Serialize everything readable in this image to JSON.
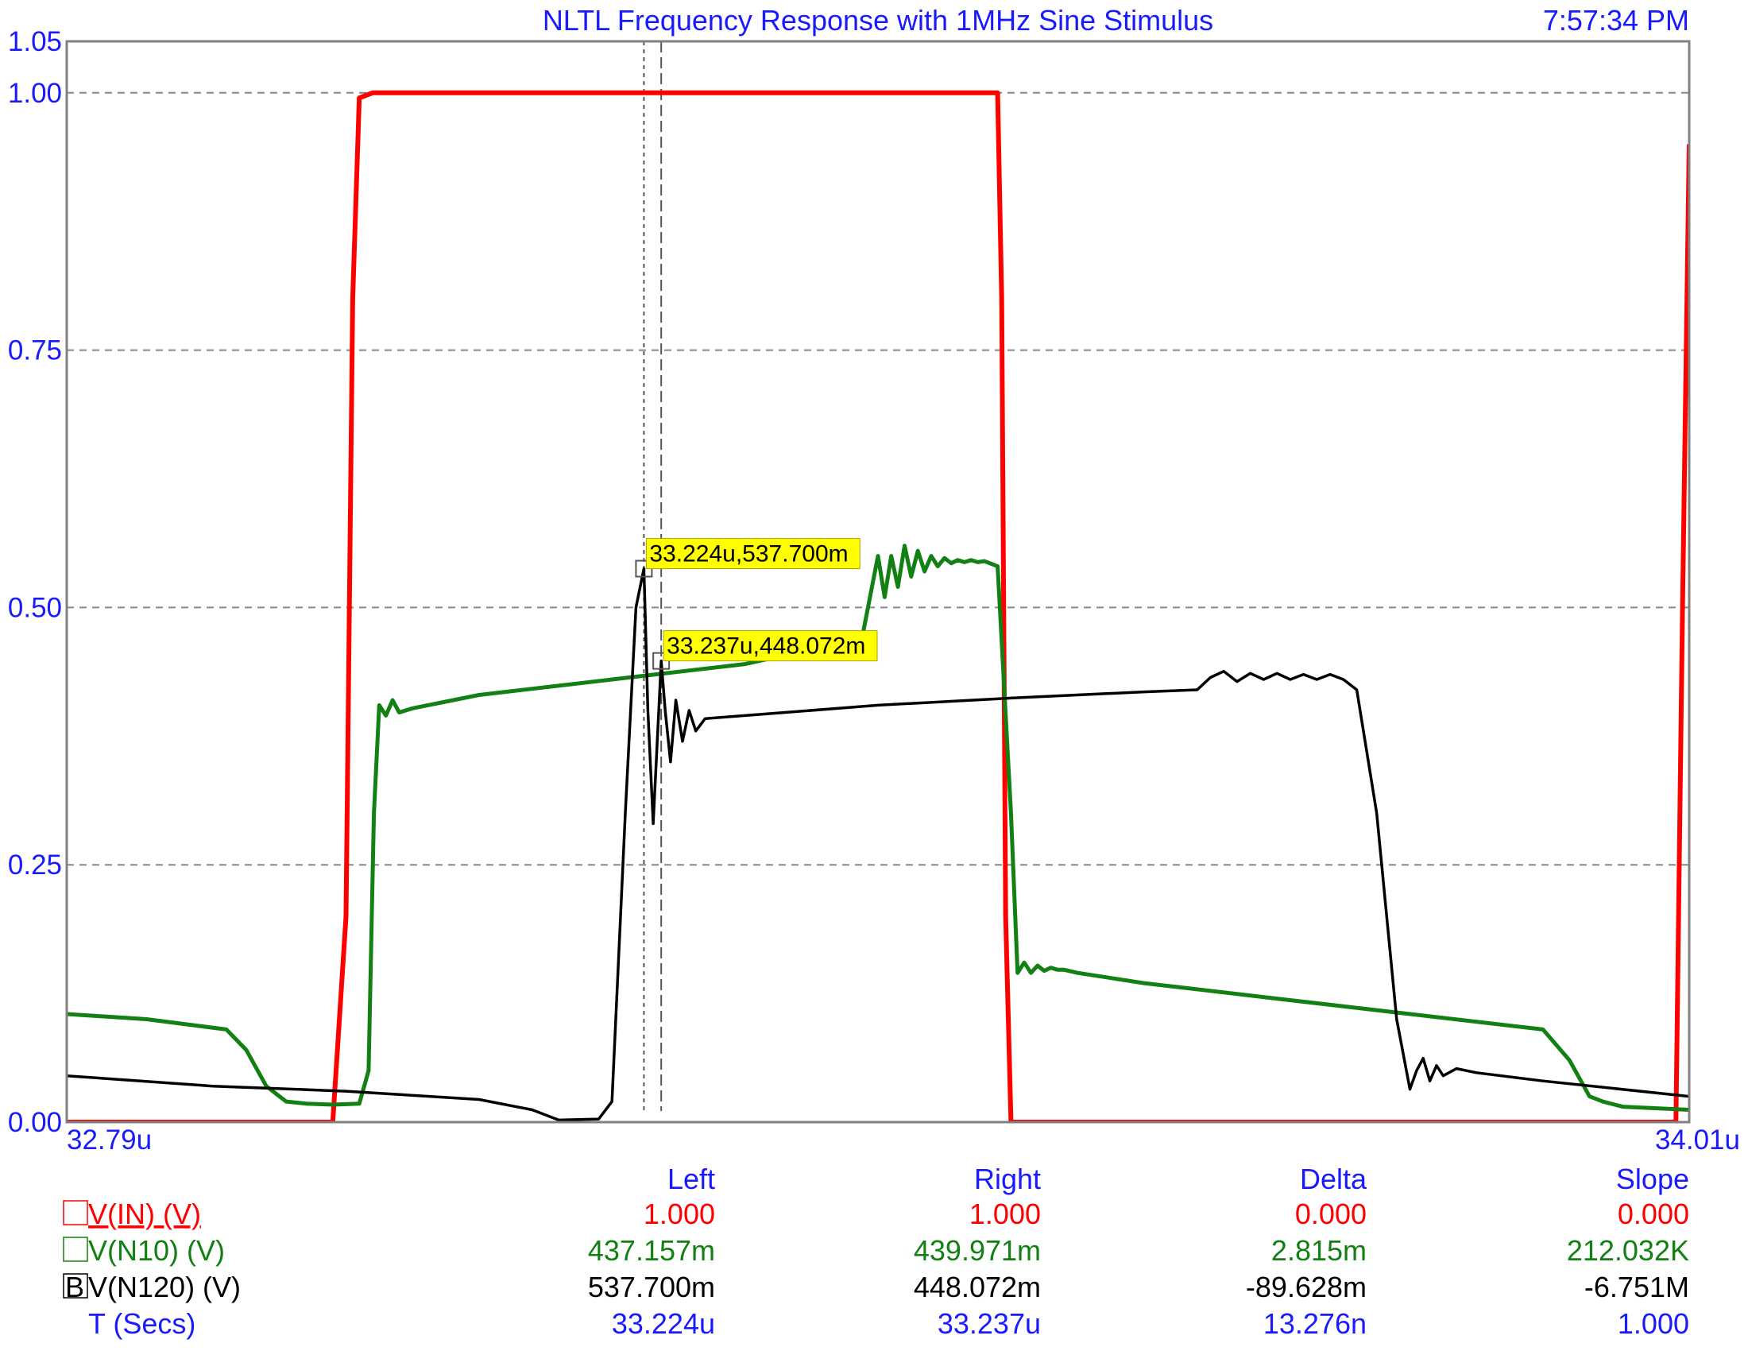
{
  "header": {
    "title": "NLTL Frequency Response with 1MHz Sine Stimulus",
    "time": "7:57:34 PM"
  },
  "colors": {
    "blue": "#1a1aff",
    "vin": "#ff0000",
    "n10": "#128012",
    "n120": "#000000",
    "grid": "#888888",
    "marker_bg": "#ffff00"
  },
  "chart_data": {
    "type": "line",
    "title": "NLTL Frequency Response with 1MHz Sine Stimulus",
    "xlabel": "T (Secs)",
    "ylabel": "",
    "xlim": [
      32.79,
      34.01
    ],
    "ylim": [
      0.0,
      1.05
    ],
    "x_tick_labels": [
      "32.79u",
      "34.01u"
    ],
    "y_ticks": [
      {
        "value": 1.05,
        "label": "1.05"
      },
      {
        "value": 1.0,
        "label": "1.00"
      },
      {
        "value": 0.75,
        "label": "0.75"
      },
      {
        "value": 0.5,
        "label": "0.50"
      },
      {
        "value": 0.25,
        "label": "0.25"
      },
      {
        "value": 0.0,
        "label": "0.00"
      }
    ],
    "grid": true,
    "series": [
      {
        "name": "V(IN) (V)",
        "color": "#ff0000",
        "x": [
          32.79,
          32.9,
          32.99,
          33.0,
          33.005,
          33.01,
          33.02,
          33.2,
          33.4,
          33.49,
          33.493,
          33.496,
          33.5,
          33.51,
          33.7,
          34.0,
          34.005,
          34.01
        ],
        "y": [
          0.0,
          0.0,
          0.0,
          0.2,
          0.8,
          0.995,
          1.0,
          1.0,
          1.0,
          1.0,
          0.8,
          0.2,
          0.0,
          0.0,
          0.0,
          0.0,
          0.5,
          0.95
        ]
      },
      {
        "name": "V(N10) (V)",
        "color": "#128012",
        "x": [
          32.79,
          32.85,
          32.91,
          32.925,
          32.94,
          32.955,
          32.97,
          32.99,
          33.01,
          33.017,
          33.021,
          33.025,
          33.03,
          33.035,
          33.04,
          33.05,
          33.1,
          33.2,
          33.3,
          33.388,
          33.4,
          33.405,
          33.41,
          33.415,
          33.42,
          33.425,
          33.43,
          33.435,
          33.44,
          33.445,
          33.45,
          33.455,
          33.46,
          33.465,
          33.47,
          33.475,
          33.48,
          33.49,
          33.5,
          33.505,
          33.51,
          33.515,
          33.52,
          33.525,
          33.53,
          33.535,
          33.54,
          33.55,
          33.6,
          33.7,
          33.8,
          33.9,
          33.92,
          33.935,
          33.945,
          33.96,
          34.01
        ],
        "y": [
          0.105,
          0.1,
          0.09,
          0.07,
          0.035,
          0.02,
          0.018,
          0.017,
          0.018,
          0.05,
          0.3,
          0.405,
          0.395,
          0.41,
          0.398,
          0.402,
          0.415,
          0.43,
          0.445,
          0.47,
          0.55,
          0.51,
          0.55,
          0.52,
          0.56,
          0.53,
          0.555,
          0.535,
          0.55,
          0.54,
          0.548,
          0.543,
          0.546,
          0.544,
          0.546,
          0.544,
          0.545,
          0.54,
          0.3,
          0.145,
          0.155,
          0.145,
          0.152,
          0.147,
          0.15,
          0.148,
          0.148,
          0.145,
          0.135,
          0.12,
          0.105,
          0.09,
          0.06,
          0.025,
          0.02,
          0.015,
          0.012
        ]
      },
      {
        "name": "V(N120) (V)",
        "color": "#000000",
        "x": [
          32.79,
          32.9,
          33.0,
          33.1,
          33.14,
          33.16,
          33.19,
          33.2,
          33.21,
          33.218,
          33.224,
          33.227,
          33.231,
          33.237,
          33.24,
          33.244,
          33.248,
          33.253,
          33.258,
          33.263,
          33.27,
          33.3,
          33.4,
          33.5,
          33.6,
          33.64,
          33.65,
          33.66,
          33.67,
          33.68,
          33.69,
          33.7,
          33.71,
          33.72,
          33.73,
          33.74,
          33.75,
          33.76,
          33.775,
          33.79,
          33.8,
          33.805,
          33.81,
          33.815,
          33.82,
          33.825,
          33.835,
          33.85,
          33.9,
          34.01
        ],
        "y": [
          0.045,
          0.035,
          0.03,
          0.022,
          0.012,
          0.002,
          0.003,
          0.02,
          0.3,
          0.5,
          0.5377,
          0.4,
          0.29,
          0.4481,
          0.4,
          0.35,
          0.41,
          0.37,
          0.4,
          0.38,
          0.392,
          0.395,
          0.405,
          0.412,
          0.418,
          0.42,
          0.432,
          0.438,
          0.428,
          0.436,
          0.43,
          0.436,
          0.43,
          0.435,
          0.43,
          0.435,
          0.43,
          0.42,
          0.3,
          0.1,
          0.032,
          0.05,
          0.062,
          0.04,
          0.055,
          0.045,
          0.052,
          0.048,
          0.04,
          0.025
        ]
      }
    ],
    "cursors": {
      "left_x": 33.224,
      "right_x": 33.237,
      "left_label": "33.224u,537.700m",
      "left_y": 0.5377,
      "right_label": "33.237u,448.072m",
      "right_y": 0.448072
    }
  },
  "table": {
    "headers": [
      "Left",
      "Right",
      "Delta",
      "Slope"
    ],
    "rows": [
      {
        "marker": "",
        "name": "V(IN) (V)",
        "color": "#ff0000",
        "underline": true,
        "values": [
          "1.000",
          "1.000",
          "0.000",
          "0.000"
        ]
      },
      {
        "marker": "",
        "name": "V(N10) (V)",
        "color": "#128012",
        "underline": false,
        "values": [
          "437.157m",
          "439.971m",
          "2.815m",
          "212.032K"
        ]
      },
      {
        "marker": "B",
        "name": "V(N120) (V)",
        "color": "#000000",
        "underline": false,
        "values": [
          "537.700m",
          "448.072m",
          "-89.628m",
          "-6.751M"
        ]
      },
      {
        "marker": "",
        "name": "T (Secs)",
        "color": "#1a1aff",
        "underline": false,
        "values": [
          "33.224u",
          "33.237u",
          "13.276n",
          "1.000"
        ]
      }
    ]
  }
}
